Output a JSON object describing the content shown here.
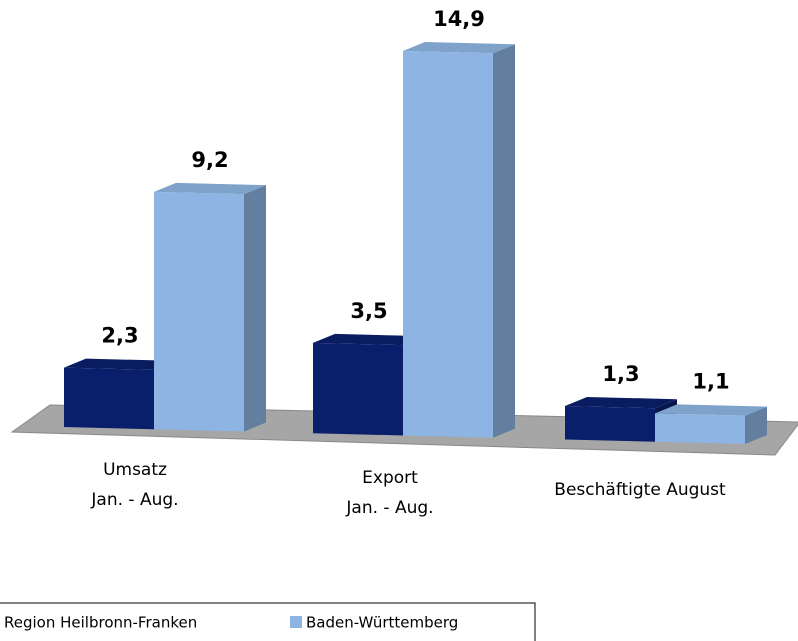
{
  "chart_data": {
    "type": "bar3d",
    "categories": [
      [
        "Umsatz",
        "Jan. - Aug."
      ],
      [
        "Export",
        "Jan. - Aug."
      ],
      [
        "Beschäftigte August"
      ]
    ],
    "series": [
      {
        "name": "Region Heilbronn-Franken",
        "color": "#0a1f6b",
        "values": [
          2.3,
          3.5,
          1.3
        ],
        "value_labels": [
          "2,3",
          "3,5",
          "1,3"
        ]
      },
      {
        "name": "Baden-Württemberg",
        "color": "#8db4e2",
        "values": [
          9.2,
          14.9,
          1.1
        ],
        "value_labels": [
          "9,2",
          "14,9",
          "1,1"
        ]
      }
    ],
    "legend": "bottom"
  }
}
